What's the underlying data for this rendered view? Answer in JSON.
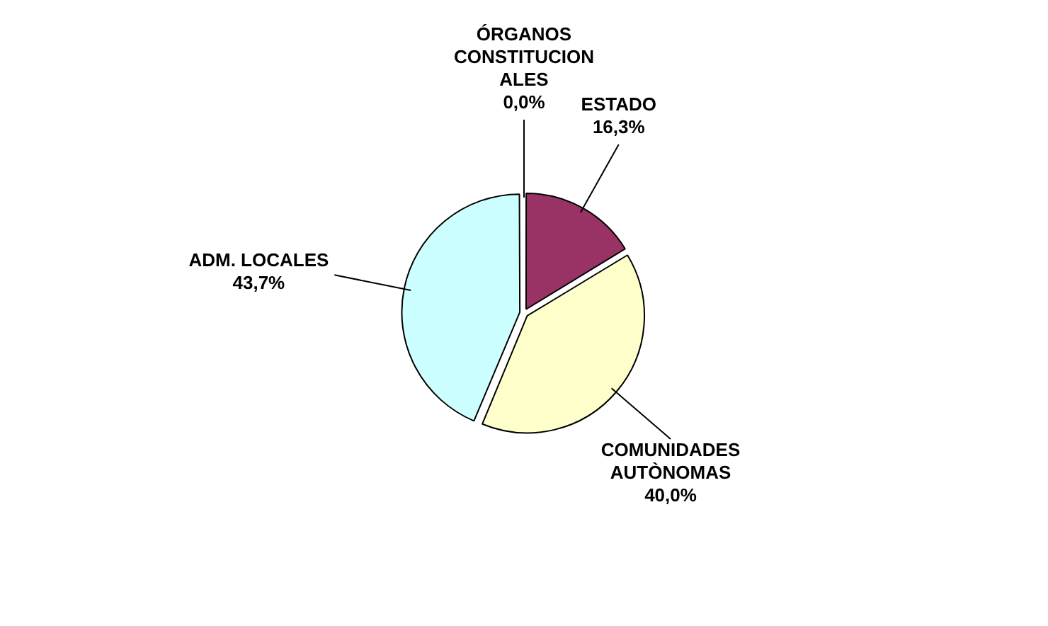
{
  "chart_data": {
    "type": "pie",
    "categories": [
      "ESTADO",
      "COMUNIDADES AUTÒNOMAS",
      "ADM. LOCALES",
      "ÓRGANOS CONSTITUCIONALES"
    ],
    "values": [
      16.3,
      40.0,
      43.7,
      0.0
    ],
    "value_labels": [
      "16,3%",
      "40,0%",
      "43,7%",
      "0,0%"
    ],
    "colors": [
      "#993366",
      "#ffffcc",
      "#ccffff",
      "#000000"
    ],
    "legend": false
  }
}
